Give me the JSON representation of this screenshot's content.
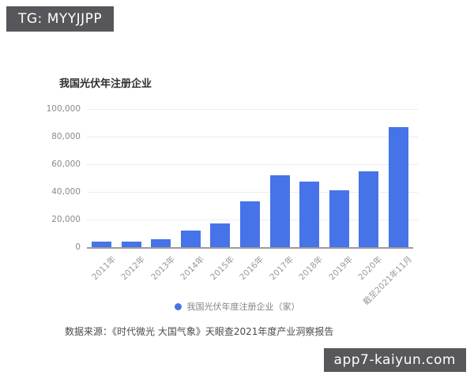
{
  "watermarks": {
    "top": "TG: MYYJJPP",
    "bottom": "app7-kaiyun.com"
  },
  "chart": {
    "title": "我国光伏年注册企业",
    "legend": "我国光伏年度注册企业（家）",
    "source": "数据来源：《时代微光 大国气象》天眼查2021年度产业洞察报告"
  },
  "chart_data": {
    "type": "bar",
    "title": "我国光伏年注册企业",
    "categories": [
      "2011年",
      "2012年",
      "2013年",
      "2014年",
      "2015年",
      "2016年",
      "2017年",
      "2018年",
      "2019年",
      "2020年",
      "截至2021年11月"
    ],
    "values": [
      3800,
      4000,
      5800,
      11800,
      17200,
      33000,
      52000,
      47500,
      41000,
      54600,
      87000
    ],
    "legend_entries": [
      "我国光伏年度注册企业（家）"
    ],
    "xlabel": "",
    "ylabel": "",
    "ylim": [
      0,
      100000
    ],
    "ytick_interval": 20000,
    "ytick_labels": [
      "0",
      "20,000",
      "40,000",
      "60,000",
      "80,000",
      "100,000"
    ],
    "bar_color": "#4673E8",
    "grid": true,
    "legend_position": "bottom"
  }
}
